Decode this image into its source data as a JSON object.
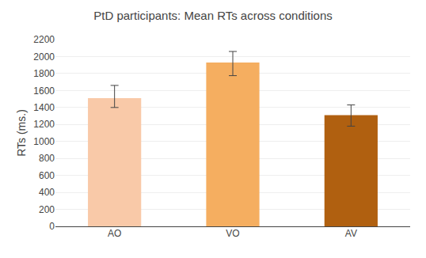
{
  "chart_data": {
    "type": "bar",
    "title": "PtD participants: Mean RTs across conditions",
    "ylabel": "RTs (ms.)",
    "categories": [
      "AO",
      "VO",
      "AV"
    ],
    "values": [
      1510,
      1930,
      1310
    ],
    "errors_upper": [
      150,
      130,
      120
    ],
    "errors_lower": [
      110,
      155,
      130
    ],
    "colors": [
      "#F9C9A8",
      "#F5AE60",
      "#B06010"
    ],
    "ylim": [
      0,
      2200
    ],
    "yticks": [
      0,
      200,
      400,
      600,
      800,
      1000,
      1200,
      1400,
      1600,
      1800,
      2000,
      2200
    ],
    "grid": true
  }
}
